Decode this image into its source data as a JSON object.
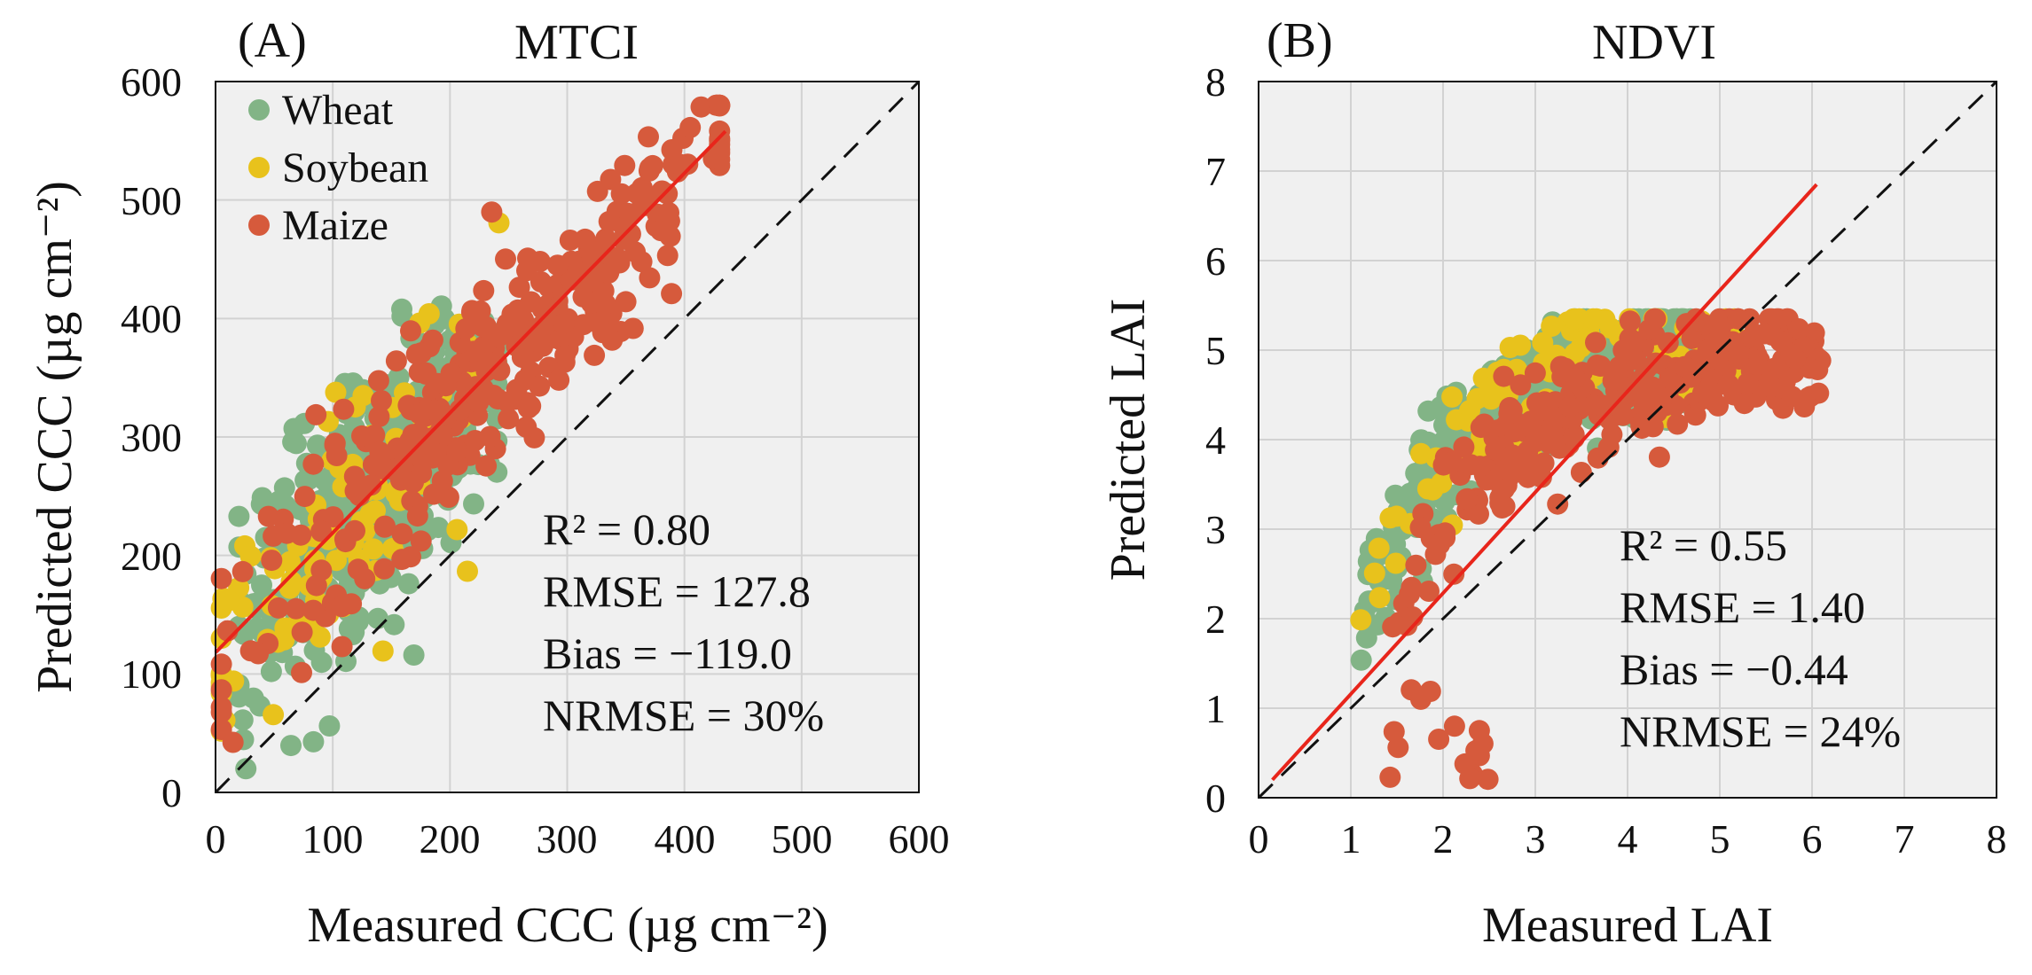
{
  "chart_data": [
    {
      "type": "scatter",
      "panel_label": "(A)",
      "title": "MTCI",
      "xlabel": "Measured CCC (µg cm⁻²)",
      "ylabel": "Predicted CCC (µg cm⁻²)",
      "xlim": [
        0,
        600
      ],
      "ylim": [
        0,
        600
      ],
      "xticks": [
        "0",
        "100",
        "200",
        "300",
        "400",
        "500",
        "600"
      ],
      "yticks": [
        "0",
        "100",
        "200",
        "300",
        "400",
        "500",
        "600"
      ],
      "grid": true,
      "legend_position": "top-left",
      "series": [
        {
          "name": "Wheat",
          "color": "#82b486",
          "x_range": [
            20,
            240
          ],
          "center": [
            130,
            270
          ],
          "count": 420,
          "spread": 0.36
        },
        {
          "name": "Soybean",
          "color": "#e8c21c",
          "x_range": [
            5,
            290
          ],
          "center": [
            110,
            220
          ],
          "count": 110,
          "spread": 0.22
        },
        {
          "name": "Maize",
          "color": "#d65a3c",
          "x_range": [
            5,
            430
          ],
          "center": [
            230,
            340
          ],
          "count": 330,
          "spread": 0.2
        }
      ],
      "fit_line": {
        "color": "#e8251b",
        "x": [
          0,
          435
        ],
        "y": [
          118,
          558
        ]
      },
      "one_to_one": {
        "x": [
          0,
          600
        ],
        "y": [
          0,
          600
        ]
      },
      "stats": [
        "R² = 0.80",
        "RMSE = 127.8",
        "Bias = −119.0",
        "NRMSE = 30%"
      ]
    },
    {
      "type": "scatter",
      "panel_label": "(B)",
      "title": "NDVI",
      "xlabel": "Measured LAI",
      "ylabel": "Predicted LAI",
      "xlim": [
        0,
        8
      ],
      "ylim": [
        0,
        8
      ],
      "xticks": [
        "0",
        "1",
        "2",
        "3",
        "4",
        "5",
        "6",
        "7",
        "8"
      ],
      "yticks": [
        "0",
        "1",
        "2",
        "3",
        "4",
        "5",
        "6",
        "7",
        "8"
      ],
      "grid": true,
      "series": [
        {
          "name": "Wheat",
          "color": "#82b486",
          "x_range": [
            1.1,
            4.7
          ],
          "saturation": 5.1,
          "count": 420
        },
        {
          "name": "Soybean",
          "color": "#e8c21c",
          "x_range": [
            1.0,
            5.3
          ],
          "saturation": 5.25,
          "count": 110
        },
        {
          "name": "Maize",
          "color": "#d65a3c",
          "x_range": [
            1.4,
            6.1
          ],
          "saturation": 5.0,
          "count": 330
        }
      ],
      "fit_line": {
        "color": "#e8251b",
        "x": [
          0.15,
          6.05
        ],
        "y": [
          0.2,
          6.85
        ]
      },
      "one_to_one": {
        "x": [
          0,
          8
        ],
        "y": [
          0,
          8
        ]
      },
      "stats": [
        "R² = 0.55",
        "RMSE = 1.40",
        "Bias = −0.44",
        "NRMSE = 24%"
      ]
    }
  ]
}
